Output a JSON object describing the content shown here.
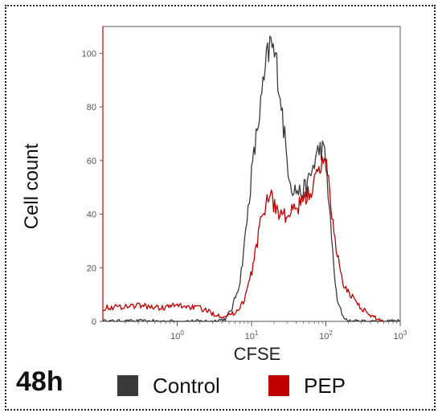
{
  "chart_data": {
    "type": "area",
    "xlabel": "CFSE",
    "ylabel": "Cell count",
    "x_scale": "log",
    "xlim": [
      0.1,
      1000
    ],
    "ylim": [
      0,
      110
    ],
    "x_ticks": [
      {
        "value": 1,
        "base": "10",
        "exp": "0"
      },
      {
        "value": 10,
        "base": "10",
        "exp": "1"
      },
      {
        "value": 100,
        "base": "10",
        "exp": "2"
      },
      {
        "value": 1000,
        "base": "10",
        "exp": "3"
      }
    ],
    "y_ticks": [
      "0",
      "20",
      "40",
      "60",
      "80",
      "100"
    ],
    "y_tick_values": [
      0,
      20,
      40,
      60,
      80,
      100
    ],
    "legend_position": "bottom",
    "series": [
      {
        "name": "Control",
        "color": "#3a3a3a",
        "x": [
          0.1,
          1,
          3,
          4.5,
          5.5,
          7,
          8.5,
          10,
          12,
          14,
          16,
          18,
          20,
          22,
          25,
          30,
          35,
          45,
          55,
          65,
          75,
          85,
          95,
          105,
          120,
          140,
          170,
          200,
          300,
          1000
        ],
        "y": [
          0,
          0,
          0,
          1,
          5,
          15,
          35,
          55,
          72,
          85,
          97,
          104,
          100,
          95,
          82,
          60,
          50,
          48,
          50,
          56,
          62,
          65,
          63,
          52,
          30,
          8,
          2,
          0,
          0,
          0
        ]
      },
      {
        "name": "PEP",
        "color": "#c00000",
        "x": [
          0.1,
          0.3,
          0.6,
          1,
          2,
          3,
          4,
          6,
          8,
          10,
          12,
          14,
          16,
          18,
          20,
          25,
          30,
          40,
          50,
          60,
          70,
          80,
          90,
          100,
          110,
          130,
          150,
          170,
          200,
          250,
          300,
          400,
          500,
          600
        ],
        "y": [
          5,
          6,
          5,
          6,
          5,
          3,
          2,
          3,
          8,
          18,
          30,
          40,
          45,
          49,
          43,
          40,
          39,
          42,
          45,
          48,
          52,
          55,
          59,
          64,
          50,
          32,
          22,
          13,
          11,
          8,
          5,
          2,
          1,
          0
        ]
      }
    ]
  },
  "panel": {
    "label": "48h"
  },
  "legend": {
    "control_label": "Control",
    "pep_label": "PEP"
  }
}
